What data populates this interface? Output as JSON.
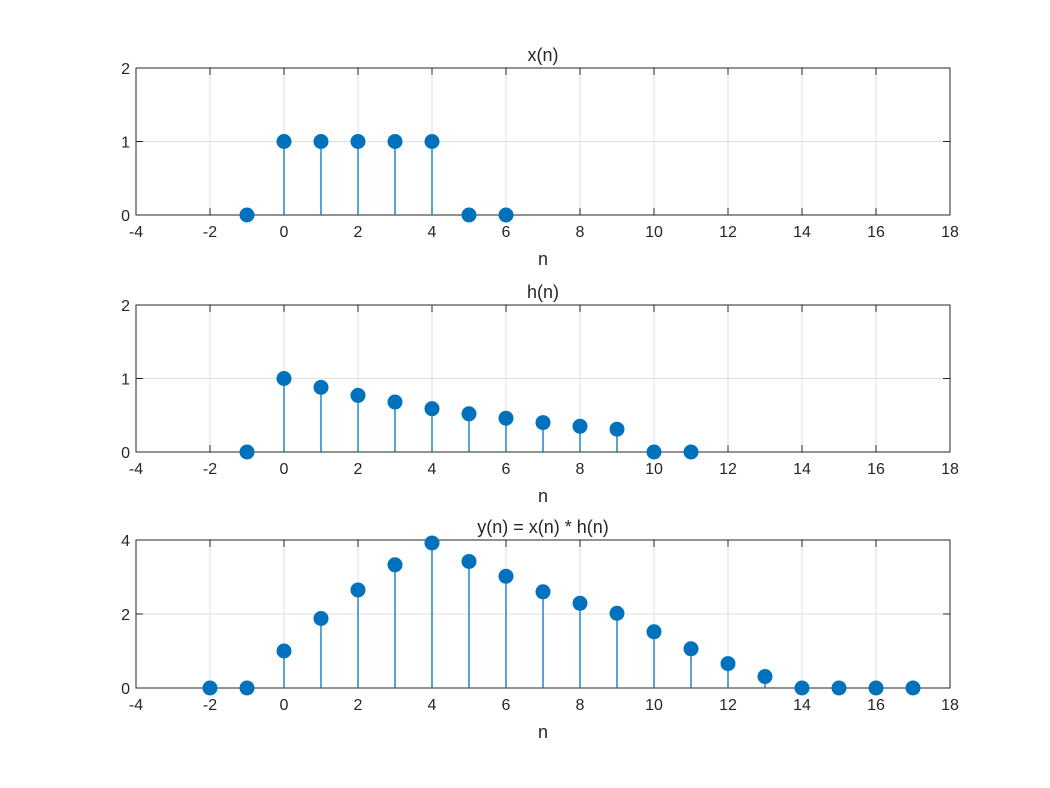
{
  "chart_data": [
    {
      "type": "stem",
      "title": "x(n)",
      "xlabel": "n",
      "ylabel": "",
      "xlim": [
        -4,
        18
      ],
      "ylim": [
        0,
        2
      ],
      "xticks": [
        "-4",
        "-2",
        "0",
        "2",
        "4",
        "6",
        "8",
        "10",
        "12",
        "14",
        "16",
        "18"
      ],
      "yticks": [
        "0",
        "1",
        "2"
      ],
      "grid": true,
      "x": [
        -1,
        0,
        1,
        2,
        3,
        4,
        5,
        6
      ],
      "y": [
        0,
        1,
        1,
        1,
        1,
        1,
        0,
        0
      ]
    },
    {
      "type": "stem",
      "title": "h(n)",
      "xlabel": "n",
      "ylabel": "",
      "xlim": [
        -4,
        18
      ],
      "ylim": [
        0,
        2
      ],
      "xticks": [
        "-4",
        "-2",
        "0",
        "2",
        "4",
        "6",
        "8",
        "10",
        "12",
        "14",
        "16",
        "18"
      ],
      "yticks": [
        "0",
        "1",
        "2"
      ],
      "grid": true,
      "x": [
        -1,
        0,
        1,
        2,
        3,
        4,
        5,
        6,
        7,
        8,
        9,
        10,
        11
      ],
      "y": [
        0,
        1,
        0.88,
        0.77,
        0.68,
        0.59,
        0.52,
        0.46,
        0.4,
        0.35,
        0.31,
        0,
        0
      ]
    },
    {
      "type": "stem",
      "title": "y(n) = x(n) * h(n)",
      "xlabel": "n",
      "ylabel": "",
      "xlim": [
        -4,
        18
      ],
      "ylim": [
        0,
        4
      ],
      "xticks": [
        "-4",
        "-2",
        "0",
        "2",
        "4",
        "6",
        "8",
        "10",
        "12",
        "14",
        "16",
        "18"
      ],
      "yticks": [
        "0",
        "2",
        "4"
      ],
      "grid": true,
      "x": [
        -2,
        -1,
        0,
        1,
        2,
        3,
        4,
        5,
        6,
        7,
        8,
        9,
        10,
        11,
        12,
        13,
        14,
        15,
        16,
        17
      ],
      "y": [
        0,
        0,
        1,
        1.88,
        2.65,
        3.33,
        3.92,
        3.42,
        3.02,
        2.6,
        2.29,
        2.02,
        1.52,
        1.06,
        0.66,
        0.31,
        0,
        0,
        0,
        0
      ]
    }
  ],
  "colors": {
    "stem": "#0072BD",
    "axes": "#262626",
    "grid": "#dfdfdf",
    "background": "#ffffff"
  }
}
